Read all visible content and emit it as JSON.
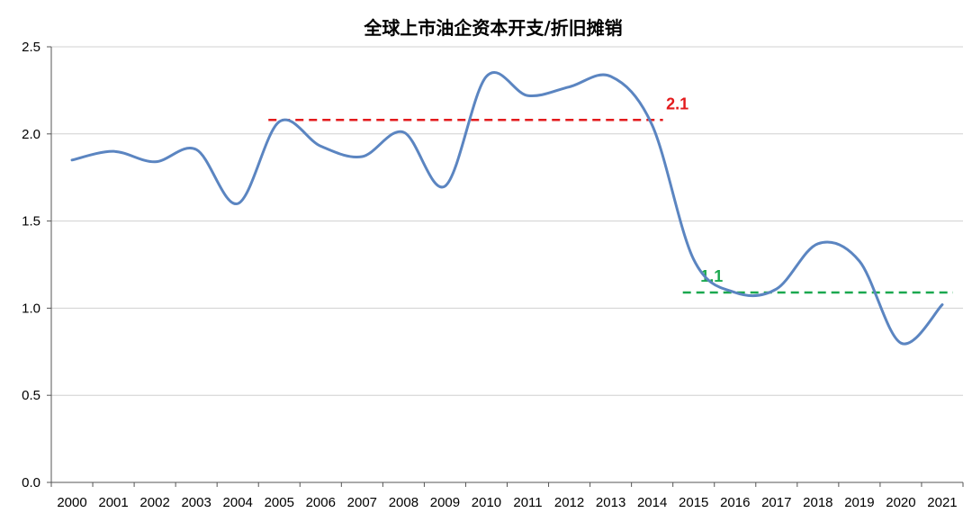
{
  "chart_data": {
    "type": "line",
    "title": "全球上市油企资本开支/折旧摊销",
    "xlabel": "",
    "ylabel": "",
    "categories": [
      "2000",
      "2001",
      "2002",
      "2003",
      "2004",
      "2005",
      "2006",
      "2007",
      "2008",
      "2009",
      "2010",
      "2011",
      "2012",
      "2013",
      "2014",
      "2015",
      "2016",
      "2017",
      "2018",
      "2019",
      "2020",
      "2021"
    ],
    "series": [
      {
        "values": [
          1.85,
          1.9,
          1.84,
          1.91,
          1.6,
          2.07,
          1.93,
          1.87,
          2.01,
          1.7,
          2.33,
          2.22,
          2.27,
          2.33,
          2.05,
          1.28,
          1.09,
          1.11,
          1.37,
          1.27,
          0.8,
          1.02
        ],
        "color": "#5b85c1"
      }
    ],
    "ylim": [
      0,
      2.5
    ],
    "yticks": [
      "0.0",
      "0.5",
      "1.0",
      "1.5",
      "2.0",
      "2.5"
    ],
    "grid": true,
    "legend": "none",
    "reference_lines": [
      {
        "label": "2.1",
        "y": 2.08,
        "x_start": "2005",
        "x_end": "2014",
        "color": "#e31a1c"
      },
      {
        "label": "1.1",
        "y": 1.09,
        "x_start": "2015",
        "x_end": "2021",
        "color": "#1aa84f"
      }
    ]
  }
}
